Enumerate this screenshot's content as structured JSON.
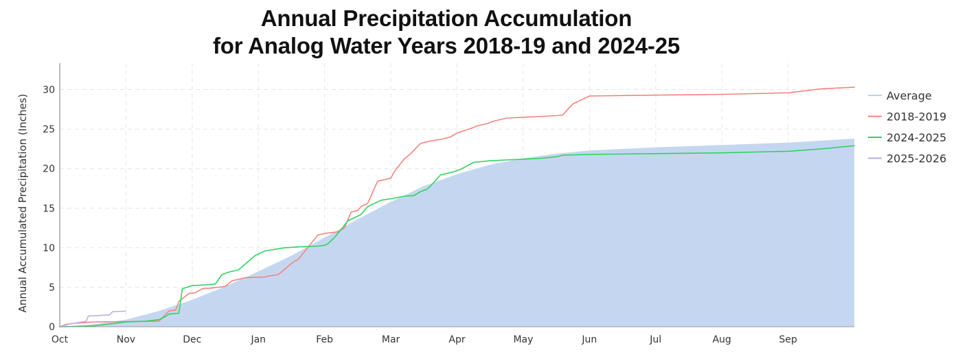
{
  "chart_data": {
    "type": "line",
    "title_line1": "Annual Precipitation Accumulation",
    "title_line2": "for Analog Water Years 2018-19 and 2024-25",
    "ylabel": "Annual Accumulated Precipitation (Inches)",
    "xlabel": "",
    "ylim": [
      0,
      33
    ],
    "yticks": [
      0,
      5,
      10,
      15,
      20,
      25,
      30
    ],
    "month_labels": [
      "Oct",
      "Nov",
      "Dec",
      "Jan",
      "Feb",
      "Mar",
      "Apr",
      "May",
      "Jun",
      "Jul",
      "Aug",
      "Sep"
    ],
    "x_unit": "months since Oct 1",
    "xlim": [
      0,
      12
    ],
    "grid": true,
    "legend_position": "right",
    "series": [
      {
        "name": "Average",
        "style": "area",
        "color": "#c5d7f0",
        "legend_color": "#b9cfeb",
        "x": [
          0,
          0.5,
          1,
          1.5,
          2,
          2.5,
          3,
          3.5,
          4,
          4.5,
          5,
          5.5,
          6,
          6.5,
          7,
          7.5,
          8,
          9,
          10,
          11,
          12
        ],
        "y": [
          0,
          0.3,
          0.9,
          2.0,
          3.4,
          5.1,
          7.0,
          9.0,
          11.3,
          13.6,
          15.8,
          17.8,
          19.3,
          20.5,
          21.3,
          21.9,
          22.3,
          22.7,
          23.0,
          23.3,
          23.8
        ]
      },
      {
        "name": "2018-2019",
        "style": "line",
        "color": "#f4837d",
        "x": [
          0,
          0.1,
          0.25,
          0.35,
          0.5,
          1.0,
          1.5,
          1.65,
          1.75,
          1.8,
          1.95,
          2.05,
          2.15,
          2.3,
          2.5,
          2.6,
          2.8,
          3.1,
          3.15,
          3.3,
          3.5,
          3.55,
          3.6,
          3.9,
          4.0,
          4.2,
          4.3,
          4.4,
          4.5,
          4.55,
          4.65,
          4.8,
          4.9,
          5.0,
          5.05,
          5.2,
          5.3,
          5.45,
          5.6,
          5.75,
          5.9,
          6.0,
          6.25,
          6.3,
          6.45,
          6.55,
          6.75,
          7.5,
          7.6,
          7.65,
          7.75,
          7.9,
          8.0,
          9.0,
          10.0,
          11.0,
          11.2,
          11.5,
          12.0
        ],
        "y": [
          0,
          0.3,
          0.45,
          0.5,
          0.6,
          0.65,
          0.7,
          2.0,
          2.1,
          3.2,
          4.2,
          4.3,
          4.8,
          4.9,
          5.1,
          5.8,
          6.2,
          6.3,
          6.4,
          6.6,
          8.0,
          8.3,
          8.5,
          11.6,
          11.8,
          12.0,
          12.5,
          14.5,
          14.7,
          15.2,
          15.6,
          18.4,
          18.6,
          18.8,
          19.6,
          21.2,
          21.9,
          23.2,
          23.5,
          23.7,
          24.0,
          24.5,
          25.2,
          25.4,
          25.7,
          26.0,
          26.4,
          26.7,
          26.8,
          27.3,
          28.2,
          28.8,
          29.2,
          29.3,
          29.4,
          29.6,
          29.8,
          30.1,
          30.3
        ]
      },
      {
        "name": "2024-2025",
        "style": "line",
        "color": "#2fd35d",
        "x": [
          0,
          0.3,
          0.5,
          0.8,
          1.0,
          1.3,
          1.5,
          1.6,
          1.65,
          1.8,
          1.85,
          2.0,
          2.2,
          2.35,
          2.45,
          2.55,
          2.7,
          2.95,
          3.1,
          3.4,
          3.6,
          3.9,
          4.0,
          4.05,
          4.15,
          4.25,
          4.35,
          4.45,
          4.55,
          4.65,
          4.85,
          5.0,
          5.2,
          5.35,
          5.45,
          5.55,
          5.6,
          5.75,
          5.95,
          6.05,
          6.25,
          6.5,
          6.75,
          7.0,
          7.25,
          7.5,
          7.6,
          8.0,
          9.0,
          10.0,
          10.5,
          11.0,
          11.5,
          12.0
        ],
        "y": [
          0,
          0.05,
          0.1,
          0.4,
          0.6,
          0.7,
          0.9,
          1.3,
          1.6,
          1.7,
          4.8,
          5.2,
          5.3,
          5.4,
          6.6,
          6.9,
          7.2,
          9.0,
          9.6,
          10.0,
          10.1,
          10.2,
          10.3,
          10.5,
          11.3,
          12.3,
          13.4,
          13.8,
          14.2,
          15.2,
          16.0,
          16.2,
          16.5,
          16.6,
          17.1,
          17.4,
          17.8,
          19.2,
          19.6,
          19.9,
          20.8,
          21.0,
          21.1,
          21.2,
          21.3,
          21.5,
          21.7,
          21.8,
          21.9,
          22.0,
          22.1,
          22.2,
          22.5,
          22.9
        ]
      },
      {
        "name": "2025-2026",
        "style": "line",
        "color": "#b8aee8",
        "x": [
          0,
          0.15,
          0.3,
          0.4,
          0.43,
          0.65,
          0.75,
          0.8,
          0.95,
          1.0
        ],
        "y": [
          0,
          0.35,
          0.55,
          0.7,
          1.35,
          1.45,
          1.5,
          1.9,
          1.95,
          2.0
        ]
      }
    ]
  }
}
